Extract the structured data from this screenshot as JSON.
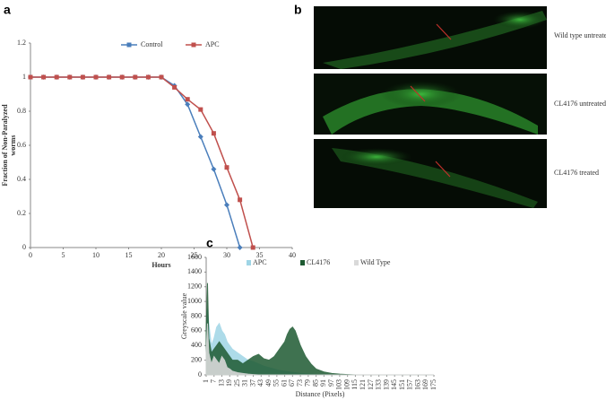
{
  "panels": [
    "a",
    "b",
    "c"
  ],
  "images": {
    "captions": [
      "Wild type untreated",
      "CL4176 untreated",
      "CL4176 treated"
    ]
  },
  "chart_data": [
    {
      "type": "line",
      "x_label": "Hours",
      "y_label": [
        "Fraction of Non-Paralyzed",
        "worms"
      ],
      "xlim": [
        0,
        40
      ],
      "xticks": [
        0,
        5,
        10,
        15,
        20,
        25,
        30,
        35,
        40
      ],
      "ylim": [
        0,
        1.2
      ],
      "yticks": [
        0,
        0.2,
        0.4,
        0.6,
        0.8,
        1,
        1.2
      ],
      "legend": "top",
      "series": [
        {
          "name": "Control",
          "color": "#4a7ebb",
          "marker": "diamond",
          "x": [
            0,
            2,
            4,
            6,
            8,
            10,
            12,
            14,
            16,
            18,
            20,
            22,
            24,
            26,
            28,
            30,
            32
          ],
          "values": [
            1,
            1,
            1,
            1,
            1,
            1,
            1,
            1,
            1,
            1,
            1,
            0.95,
            0.84,
            0.65,
            0.46,
            0.25,
            0
          ]
        },
        {
          "name": "APC",
          "color": "#c0504d",
          "marker": "square",
          "x": [
            0,
            2,
            4,
            6,
            8,
            10,
            12,
            14,
            16,
            18,
            20,
            22,
            24,
            26,
            28,
            30,
            32,
            34
          ],
          "values": [
            1,
            1,
            1,
            1,
            1,
            1,
            1,
            1,
            1,
            1,
            1,
            0.94,
            0.87,
            0.81,
            0.67,
            0.47,
            0.28,
            0
          ]
        }
      ]
    },
    {
      "type": "area",
      "x_label": "Distance (Pixels)",
      "y_label": "Greyscale value",
      "xlim": [
        1,
        175
      ],
      "xticks": [
        1,
        7,
        13,
        19,
        25,
        31,
        37,
        43,
        49,
        55,
        61,
        67,
        73,
        79,
        85,
        91,
        97,
        103,
        109,
        115,
        121,
        127,
        133,
        139,
        145,
        151,
        157,
        163,
        169,
        175
      ],
      "ylim": [
        0,
        1600
      ],
      "yticks": [
        0,
        200,
        400,
        600,
        800,
        1000,
        1200,
        1400,
        1600
      ],
      "legend": "top",
      "x": [
        1,
        2,
        3,
        5,
        7,
        9,
        11,
        13,
        15,
        17,
        19,
        21,
        25,
        29,
        33,
        37,
        41,
        45,
        49,
        53,
        57,
        61,
        63,
        65,
        67,
        69,
        71,
        73,
        77,
        81,
        85,
        91,
        97,
        103,
        109,
        115,
        121,
        127,
        133,
        139,
        145,
        151,
        157,
        163,
        169,
        175
      ],
      "series": [
        {
          "name": "APC",
          "color": "#9fd5e6",
          "values": [
            500,
            900,
            700,
            400,
            500,
            650,
            700,
            600,
            550,
            450,
            400,
            350,
            300,
            250,
            200,
            180,
            150,
            120,
            100,
            80,
            60,
            50,
            45,
            40,
            35,
            30,
            25,
            20,
            15,
            10,
            5,
            0,
            0,
            0,
            0,
            0,
            0,
            0,
            0,
            0,
            0,
            0,
            0,
            0,
            0,
            0
          ]
        },
        {
          "name": "CL4176",
          "color": "#1e5a32",
          "values": [
            600,
            1250,
            500,
            300,
            350,
            400,
            450,
            400,
            350,
            300,
            250,
            200,
            200,
            150,
            200,
            250,
            280,
            220,
            200,
            250,
            350,
            450,
            550,
            620,
            650,
            600,
            500,
            400,
            250,
            150,
            80,
            40,
            20,
            10,
            5,
            0,
            0,
            0,
            0,
            0,
            0,
            0,
            0,
            0,
            0,
            0
          ]
        },
        {
          "name": "Wild Type",
          "color": "#d9d9d9",
          "values": [
            300,
            700,
            300,
            150,
            250,
            200,
            150,
            250,
            200,
            100,
            80,
            50,
            30,
            20,
            10,
            5,
            0,
            0,
            0,
            0,
            0,
            0,
            0,
            0,
            0,
            0,
            0,
            0,
            0,
            0,
            0,
            0,
            0,
            0,
            0,
            0,
            0,
            0,
            0,
            0,
            0,
            0,
            0,
            0,
            0,
            0
          ]
        }
      ]
    }
  ]
}
